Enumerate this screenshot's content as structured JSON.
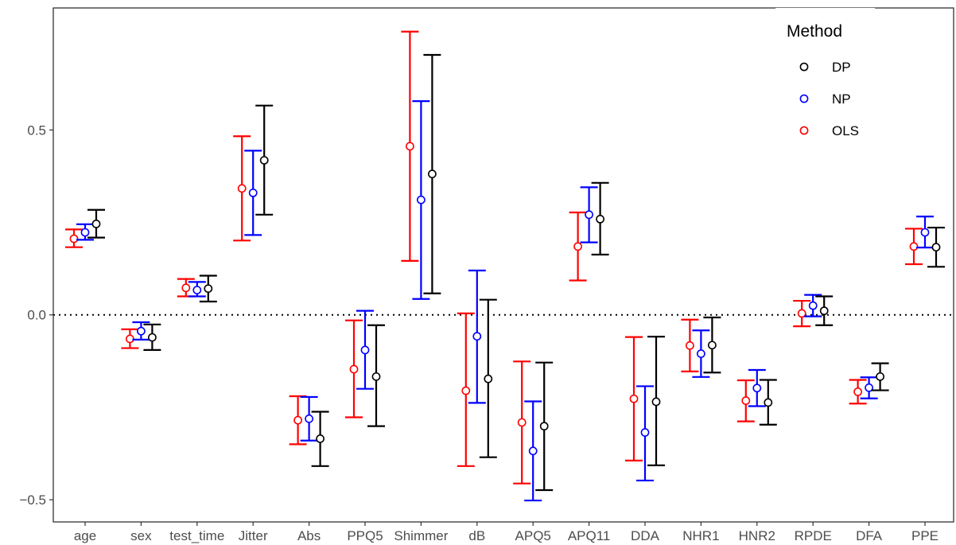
{
  "chart_data": {
    "type": "errorbar",
    "categories": [
      "age",
      "sex",
      "test_time",
      "Jitter",
      "Abs",
      "PPQ5",
      "Shimmer",
      "dB",
      "APQ5",
      "APQ11",
      "DDA",
      "NHR1",
      "HNR2",
      "RPDE",
      "DFA",
      "PPE"
    ],
    "ylim": [
      -0.56,
      0.83
    ],
    "yticks": [
      -0.5,
      0.0,
      0.5
    ],
    "ytick_labels": [
      "−0.5",
      "0.0",
      "0.5"
    ],
    "reference_line": {
      "y": 0.0,
      "style": "dotted"
    },
    "legend": {
      "title": "Method",
      "position": "top-right"
    },
    "series": [
      {
        "name": "OLS",
        "color": "#ff0000",
        "est": [
          0.206,
          -0.065,
          0.073,
          0.342,
          -0.285,
          -0.147,
          0.456,
          -0.205,
          -0.291,
          0.185,
          -0.227,
          -0.083,
          -0.232,
          0.004,
          -0.208,
          0.185
        ],
        "low": [
          0.183,
          -0.09,
          0.05,
          0.201,
          -0.35,
          -0.277,
          0.146,
          -0.409,
          -0.456,
          0.093,
          -0.394,
          -0.153,
          -0.288,
          -0.031,
          -0.24,
          0.137
        ],
        "high": [
          0.231,
          -0.039,
          0.097,
          0.483,
          -0.22,
          -0.015,
          0.766,
          0.004,
          -0.126,
          0.277,
          -0.06,
          -0.013,
          -0.177,
          0.038,
          -0.176,
          0.233
        ]
      },
      {
        "name": "NP",
        "color": "#0000ff",
        "est": [
          0.223,
          -0.044,
          0.067,
          0.33,
          -0.281,
          -0.095,
          0.311,
          -0.058,
          -0.368,
          0.271,
          -0.318,
          -0.105,
          -0.198,
          0.025,
          -0.197,
          0.223
        ],
        "low": [
          0.203,
          -0.067,
          0.05,
          0.216,
          -0.34,
          -0.2,
          0.043,
          -0.238,
          -0.502,
          0.196,
          -0.448,
          -0.168,
          -0.247,
          -0.004,
          -0.226,
          0.182
        ],
        "high": [
          0.245,
          -0.02,
          0.089,
          0.444,
          -0.222,
          0.011,
          0.578,
          0.12,
          -0.234,
          0.345,
          -0.193,
          -0.042,
          -0.149,
          0.054,
          -0.169,
          0.266
        ]
      },
      {
        "name": "DP",
        "color": "#000000",
        "est": [
          0.246,
          -0.061,
          0.071,
          0.418,
          -0.335,
          -0.167,
          0.381,
          -0.173,
          -0.301,
          0.259,
          -0.235,
          -0.082,
          -0.237,
          0.011,
          -0.167,
          0.183
        ],
        "low": [
          0.209,
          -0.095,
          0.036,
          0.271,
          -0.409,
          -0.301,
          0.058,
          -0.385,
          -0.474,
          0.163,
          -0.407,
          -0.156,
          -0.297,
          -0.028,
          -0.204,
          0.13
        ],
        "high": [
          0.284,
          -0.026,
          0.106,
          0.566,
          -0.262,
          -0.028,
          0.703,
          0.041,
          -0.129,
          0.357,
          -0.059,
          -0.007,
          -0.176,
          0.05,
          -0.131,
          0.236
        ]
      }
    ],
    "legend_order": [
      "DP",
      "NP",
      "OLS"
    ]
  }
}
